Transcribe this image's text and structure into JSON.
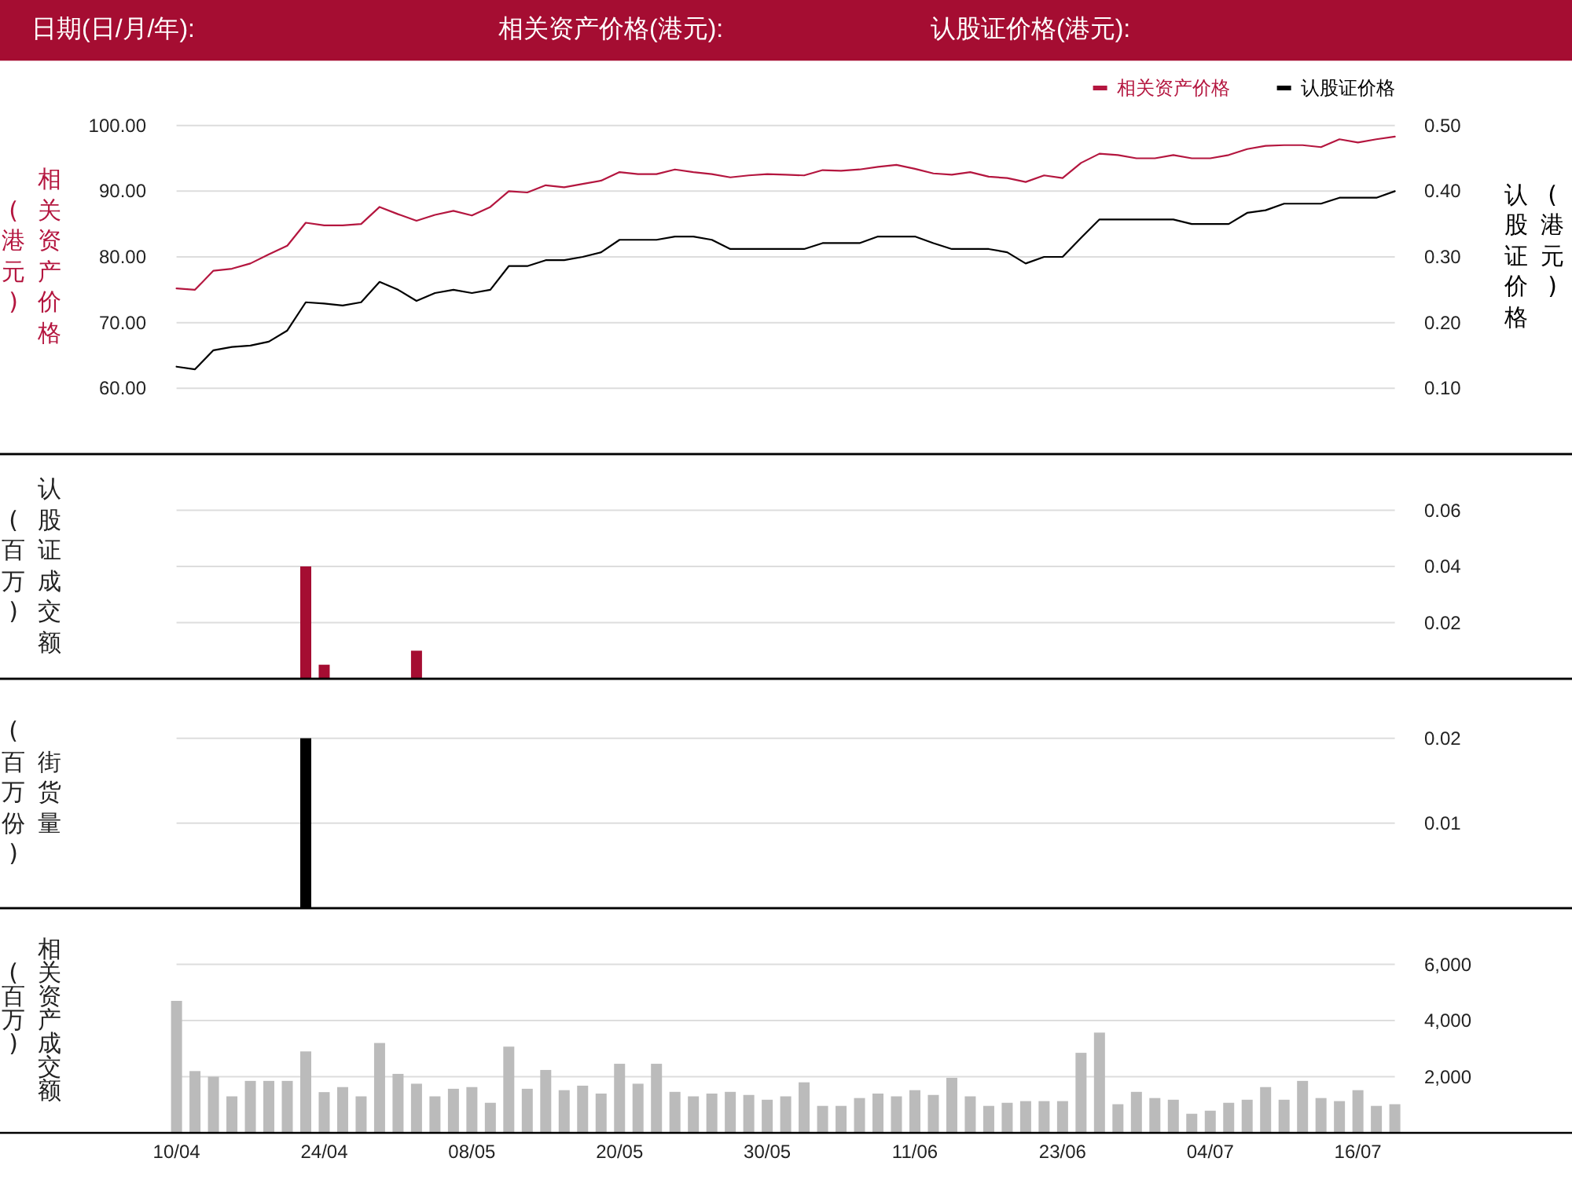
{
  "chart_data": [
    {
      "type": "line",
      "annotations": [
        "日期(日/月/年):",
        "相关资产价格(港元):",
        "认股证价格(港元):"
      ],
      "categories": [
        null,
        null,
        null,
        null,
        null,
        null,
        null,
        null,
        null,
        null,
        null,
        null,
        null,
        null,
        null,
        null,
        null,
        null,
        null,
        null,
        null,
        null,
        null,
        null,
        null,
        null,
        null,
        null,
        null,
        null,
        null,
        null,
        null,
        null,
        null,
        null,
        null,
        null,
        null,
        null,
        null,
        null,
        null,
        null,
        null,
        null,
        null,
        null,
        null,
        null,
        null,
        null,
        null,
        null,
        null,
        null,
        null,
        null,
        null,
        null,
        null,
        null,
        null,
        null,
        null,
        null,
        null
      ],
      "series": [
        {
          "name": "相关资产价格",
          "color": "#b4163f",
          "values": [
            75.2,
            75.0,
            77.9,
            78.2,
            79.0,
            80.4,
            81.7,
            85.2,
            84.8,
            84.8,
            85.0,
            87.6,
            86.5,
            85.5,
            86.4,
            87.0,
            86.3,
            87.6,
            90.0,
            89.8,
            90.9,
            90.6,
            91.1,
            91.6,
            92.9,
            92.6,
            92.6,
            93.3,
            92.9,
            92.6,
            92.1,
            92.4,
            92.6,
            92.5,
            92.4,
            93.2,
            93.1,
            93.3,
            93.7,
            94.0,
            93.4,
            92.7,
            92.5,
            92.9,
            92.2,
            92.0,
            91.4,
            92.4,
            92.0,
            94.3,
            95.7,
            95.5,
            95.0,
            95.0,
            95.5,
            95.0,
            95.0,
            95.5,
            96.4,
            96.9,
            97.0,
            97.0,
            96.7,
            97.9,
            97.4,
            97.9,
            98.3
          ]
        },
        {
          "name": "认股证价格",
          "color": "#000000",
          "axis": "y2",
          "values": [
            0.133,
            0.129,
            0.158,
            0.163,
            0.165,
            0.171,
            0.188,
            0.231,
            0.229,
            0.226,
            0.231,
            0.262,
            0.25,
            0.233,
            0.245,
            0.25,
            0.245,
            0.25,
            0.286,
            0.286,
            0.295,
            0.295,
            0.3,
            0.307,
            0.326,
            0.326,
            0.326,
            0.331,
            0.331,
            0.326,
            0.312,
            0.312,
            0.312,
            0.312,
            0.312,
            0.321,
            0.321,
            0.321,
            0.331,
            0.331,
            0.331,
            0.321,
            0.312,
            0.312,
            0.312,
            0.307,
            0.29,
            0.3,
            0.3,
            0.329,
            0.357,
            0.357,
            0.357,
            0.357,
            0.357,
            0.35,
            0.35,
            0.35,
            0.367,
            0.371,
            0.381,
            0.381,
            0.381,
            0.39,
            0.39,
            0.39,
            0.4
          ]
        }
      ],
      "ylabel": "相关资产价格\n(港元)",
      "y2label": "认股证价格\n(港元)",
      "ylim": [
        50,
        110
      ],
      "yticks": [
        {
          "value": 60,
          "label": "60.00"
        },
        {
          "value": 70,
          "label": "70.00"
        },
        {
          "value": 80,
          "label": "80.00"
        },
        {
          "value": 90,
          "label": "90.00"
        },
        {
          "value": 100,
          "label": "100.00"
        }
      ],
      "y2lim": [
        0,
        0.6
      ],
      "y2ticks": [
        {
          "value": 0.1,
          "label": "0.10"
        },
        {
          "value": 0.2,
          "label": "0.20"
        },
        {
          "value": 0.3,
          "label": "0.30"
        },
        {
          "value": 0.4,
          "label": "0.40"
        },
        {
          "value": 0.5,
          "label": "0.50"
        }
      ],
      "grid": "y",
      "legend": "top right",
      "tick_labels": "y"
    },
    {
      "type": "bar",
      "categories": [
        null,
        null,
        null,
        null,
        null,
        null,
        null,
        null,
        null,
        null,
        null,
        null,
        null,
        null,
        null,
        null,
        null,
        null,
        null,
        null,
        null,
        null,
        null,
        null,
        null,
        null,
        null,
        null,
        null,
        null,
        null,
        null,
        null,
        null,
        null,
        null,
        null,
        null,
        null,
        null,
        null,
        null,
        null,
        null,
        null,
        null,
        null,
        null,
        null,
        null,
        null,
        null,
        null,
        null,
        null,
        null,
        null,
        null,
        null,
        null,
        null,
        null,
        null,
        null,
        null,
        null,
        null
      ],
      "color": "#a50d32",
      "values": [
        null,
        null,
        null,
        null,
        null,
        null,
        null,
        0.04,
        0.005,
        null,
        null,
        null,
        null,
        0.01,
        null,
        null,
        null,
        null,
        null,
        null,
        null,
        null,
        null,
        null,
        null,
        null,
        null,
        null,
        null,
        null,
        null,
        null,
        null,
        null,
        null,
        null,
        null,
        null,
        null,
        null,
        null,
        null,
        null,
        null,
        null,
        null,
        null,
        null,
        null,
        null,
        null,
        null,
        null,
        null,
        null,
        null,
        null,
        null,
        null,
        null,
        null,
        null,
        null,
        null,
        null,
        null,
        null
      ],
      "ylabel": "认股证成交额\n(百万)",
      "ylim": [
        0,
        0.08
      ],
      "yticks": [
        0.02,
        0.04,
        0.06
      ],
      "grid": "y",
      "tick_labels": "y"
    },
    {
      "type": "bar",
      "categories": [
        null,
        null,
        null,
        null,
        null,
        null,
        null,
        null,
        null,
        null,
        null,
        null,
        null,
        null,
        null,
        null,
        null,
        null,
        null,
        null,
        null,
        null,
        null,
        null,
        null,
        null,
        null,
        null,
        null,
        null,
        null,
        null,
        null,
        null,
        null,
        null,
        null,
        null,
        null,
        null,
        null,
        null,
        null,
        null,
        null,
        null,
        null,
        null,
        null,
        null,
        null,
        null,
        null,
        null,
        null,
        null,
        null,
        null,
        null,
        null,
        null,
        null,
        null,
        null,
        null,
        null,
        null
      ],
      "color": "#000000",
      "values": [
        null,
        null,
        null,
        null,
        null,
        null,
        null,
        0.02,
        null,
        null,
        null,
        null,
        null,
        null,
        null,
        null,
        null,
        null,
        null,
        null,
        null,
        null,
        null,
        null,
        null,
        null,
        null,
        null,
        null,
        null,
        null,
        null,
        null,
        null,
        null,
        null,
        null,
        null,
        null,
        null,
        null,
        null,
        null,
        null,
        null,
        null,
        null,
        null,
        null,
        null,
        null,
        null,
        null,
        null,
        null,
        null,
        null,
        null,
        null,
        null,
        null,
        null,
        null,
        null,
        null,
        null,
        null
      ],
      "ylabel": "街货量\n(百万份)",
      "ylim": [
        0,
        0.027
      ],
      "yticks": [
        0.01,
        0.02
      ],
      "grid": "y",
      "tick_labels": "y"
    },
    {
      "type": "bar",
      "categories": [
        "10/04",
        null,
        null,
        null,
        null,
        null,
        null,
        null,
        "24/04",
        null,
        null,
        null,
        null,
        null,
        null,
        null,
        "08/05",
        null,
        null,
        null,
        null,
        null,
        null,
        null,
        "20/05",
        null,
        null,
        null,
        null,
        null,
        null,
        null,
        "30/05",
        null,
        null,
        null,
        null,
        null,
        null,
        null,
        "11/06",
        null,
        null,
        null,
        null,
        null,
        null,
        null,
        "23/06",
        null,
        null,
        null,
        null,
        null,
        null,
        null,
        "04/07",
        null,
        null,
        null,
        null,
        null,
        null,
        null,
        "16/07",
        null,
        null
      ],
      "color": "#bbbbbb",
      "values": [
        4700,
        2200,
        2000,
        1300,
        1850,
        1850,
        1850,
        2900,
        1450,
        1630,
        1300,
        3200,
        2100,
        1750,
        1300,
        1570,
        1630,
        1070,
        3070,
        1570,
        2240,
        1520,
        1680,
        1400,
        2460,
        1750,
        2460,
        1460,
        1300,
        1400,
        1460,
        1350,
        1180,
        1300,
        1800,
        960,
        960,
        1240,
        1400,
        1300,
        1520,
        1350,
        1960,
        1300,
        960,
        1070,
        1130,
        1130,
        1130,
        2850,
        3570,
        1020,
        1460,
        1240,
        1180,
        680,
        790,
        1070,
        1180,
        1630,
        1180,
        1850,
        1240,
        1130,
        1520,
        960,
        1020
      ],
      "ylabel": "相关资产成交额\n(百万)",
      "ylim": [
        0,
        8000
      ],
      "yticks": [
        {
          "value": 2000,
          "label": "2,000"
        },
        {
          "value": 4000,
          "label": "4,000"
        },
        {
          "value": 6000,
          "label": "6,000"
        }
      ],
      "grid": "y"
    }
  ]
}
